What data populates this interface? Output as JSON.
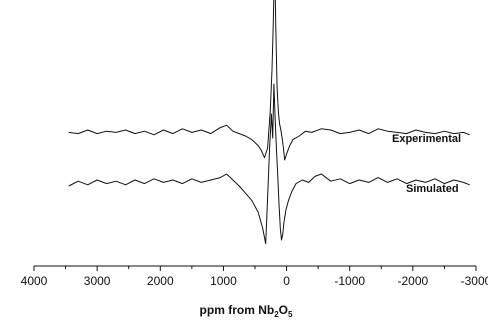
{
  "chart_data": {
    "type": "line",
    "title": "",
    "xlabel": {
      "prefix": "ppm from Nb",
      "sub1": "2",
      "mid": "O",
      "sub2": "5"
    },
    "ylabel": "",
    "xlim": [
      4000,
      -3000
    ],
    "xticks": [
      4000,
      3000,
      2000,
      1000,
      0,
      -1000,
      -2000,
      -3000
    ],
    "xtick_labels": [
      "4000",
      "3000",
      "2000",
      "1000",
      "0",
      "-1000",
      "-2000",
      "-3000"
    ],
    "y_axis_shown": false,
    "grid": false,
    "series": [
      {
        "name": "Experimental",
        "color": "#111111",
        "x": [
          3450,
          3300,
          3150,
          3000,
          2850,
          2700,
          2550,
          2400,
          2250,
          2100,
          1950,
          1800,
          1650,
          1500,
          1350,
          1200,
          1050,
          950,
          850,
          750,
          650,
          550,
          450,
          400,
          350,
          300,
          260,
          230,
          210,
          190,
          170,
          150,
          130,
          110,
          90,
          70,
          50,
          30,
          0,
          -50,
          -100,
          -200,
          -300,
          -400,
          -550,
          -700,
          -850,
          -1000,
          -1150,
          -1300,
          -1450,
          -1600,
          -1750,
          -1900,
          -2050,
          -2200,
          -2350,
          -2500,
          -2650,
          -2800,
          -2900
        ],
        "y": [
          3,
          2,
          5,
          2,
          4,
          3,
          5,
          2,
          4,
          1,
          5,
          2,
          6,
          3,
          5,
          2,
          7,
          9,
          4,
          2,
          0,
          -3,
          -8,
          -12,
          -18,
          -10,
          20,
          55,
          95,
          150,
          90,
          40,
          20,
          10,
          5,
          -2,
          -10,
          -20,
          -15,
          -8,
          -3,
          0,
          4,
          3,
          6,
          5,
          2,
          3,
          5,
          2,
          6,
          4,
          3,
          2,
          5,
          3,
          2,
          4,
          2,
          3,
          1
        ]
      },
      {
        "name": "Simulated",
        "color": "#111111",
        "x": [
          3450,
          3300,
          3150,
          3000,
          2850,
          2700,
          2550,
          2400,
          2250,
          2100,
          1950,
          1800,
          1650,
          1500,
          1350,
          1200,
          1050,
          950,
          850,
          750,
          650,
          550,
          450,
          380,
          330,
          300,
          270,
          240,
          220,
          200,
          180,
          160,
          140,
          120,
          100,
          80,
          60,
          40,
          10,
          -30,
          -80,
          -150,
          -250,
          -350,
          -450,
          -550,
          -700,
          -850,
          -1000,
          -1150,
          -1300,
          -1450,
          -1600,
          -1750,
          -1900,
          -2050,
          -2200,
          -2350,
          -2500,
          -2650,
          -2800,
          -2900
        ],
        "y": [
          0,
          4,
          1,
          5,
          2,
          4,
          1,
          5,
          2,
          6,
          3,
          5,
          2,
          6,
          3,
          5,
          7,
          10,
          5,
          0,
          -6,
          -12,
          -22,
          -35,
          -48,
          -10,
          30,
          60,
          40,
          85,
          55,
          30,
          10,
          -15,
          -35,
          -45,
          -40,
          -30,
          -20,
          -12,
          -5,
          2,
          5,
          3,
          8,
          10,
          4,
          6,
          2,
          5,
          3,
          7,
          3,
          6,
          2,
          5,
          3,
          6,
          2,
          5,
          3,
          1
        ]
      }
    ]
  }
}
